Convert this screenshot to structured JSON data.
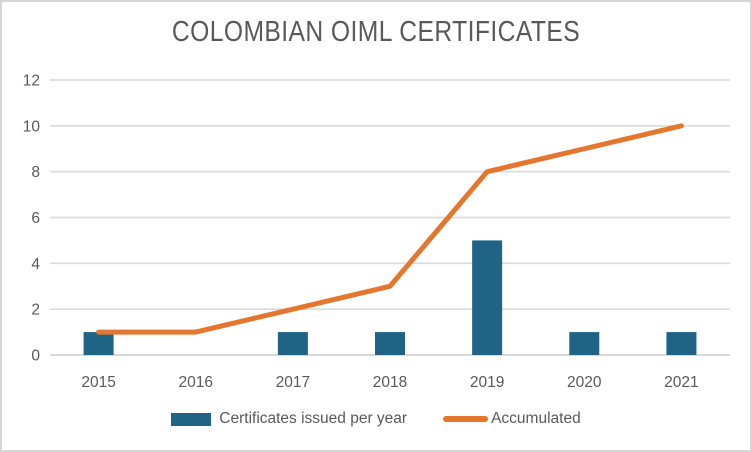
{
  "chart_data": {
    "type": "bar",
    "subtype": "bar-line-combo",
    "title": "COLOMBIAN OIML CERTIFICATES",
    "categories": [
      "2015",
      "2016",
      "2017",
      "2018",
      "2019",
      "2020",
      "2021"
    ],
    "series": [
      {
        "name": "Certificates issued per year",
        "type": "bar",
        "color": "#1F6385",
        "values": [
          1,
          0,
          1,
          1,
          5,
          1,
          1
        ]
      },
      {
        "name": "Accumulated",
        "type": "line",
        "color": "#E5762E",
        "values": [
          1,
          1,
          2,
          3,
          8,
          9,
          10
        ]
      }
    ],
    "xlabel": "",
    "ylabel": "",
    "ylim": [
      0,
      12
    ],
    "yticks": [
      0,
      2,
      4,
      6,
      8,
      10,
      12
    ],
    "grid": "horizontal",
    "legend_position": "bottom",
    "colors": {
      "text": "#595959",
      "gridline": "#DBDBDB",
      "axis_line": "#D9D9D9",
      "background": "#FFFFFF",
      "frame_border": "#D6D6D6"
    }
  }
}
